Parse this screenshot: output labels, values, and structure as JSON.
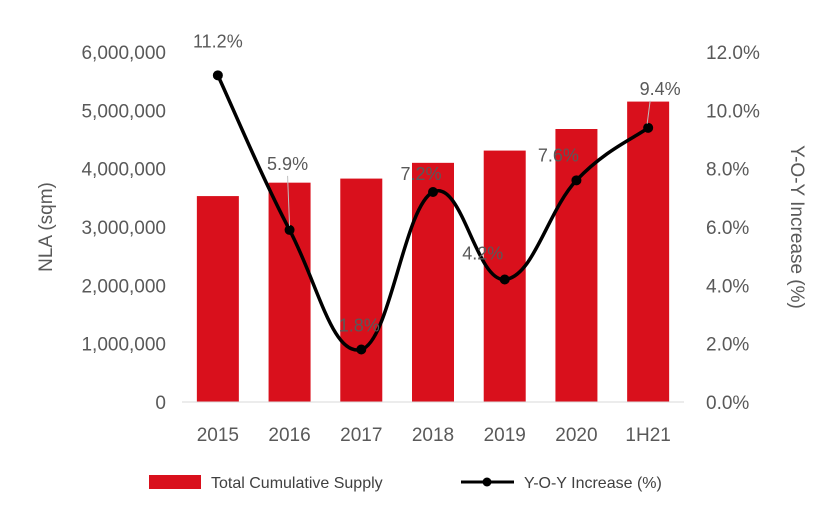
{
  "chart_data": {
    "type": "bar",
    "categories": [
      "2015",
      "2016",
      "2017",
      "2018",
      "2019",
      "2020",
      "1H21"
    ],
    "series": [
      {
        "name": "Total Cumulative Supply",
        "type": "bar",
        "axis": "left",
        "values": [
          3530000,
          3760000,
          3830000,
          4100000,
          4310000,
          4680000,
          5150000
        ]
      },
      {
        "name": "Y-O-Y Increase (%)",
        "type": "line",
        "axis": "right",
        "values": [
          11.2,
          5.9,
          1.8,
          7.2,
          4.2,
          7.6,
          9.4
        ],
        "data_labels": [
          "11.2%",
          "5.9%",
          "1.8%",
          "7.2%",
          "4.2%",
          "7.6%",
          "9.4%"
        ]
      }
    ],
    "ylabel": "NLA (sqm)",
    "y2label": "Y-O-Y Increase (%)",
    "ylim": [
      0,
      6000000
    ],
    "y2lim": [
      0,
      12
    ],
    "yticks": [
      "0",
      "1,000,000",
      "2,000,000",
      "3,000,000",
      "4,000,000",
      "5,000,000",
      "6,000,000"
    ],
    "y2ticks": [
      "0.0%",
      "2.0%",
      "4.0%",
      "6.0%",
      "8.0%",
      "10.0%",
      "12.0%"
    ],
    "grid": false,
    "legend_position": "bottom",
    "colors": {
      "bar": "#d9101c",
      "line": "#000000",
      "text": "#595959"
    }
  }
}
